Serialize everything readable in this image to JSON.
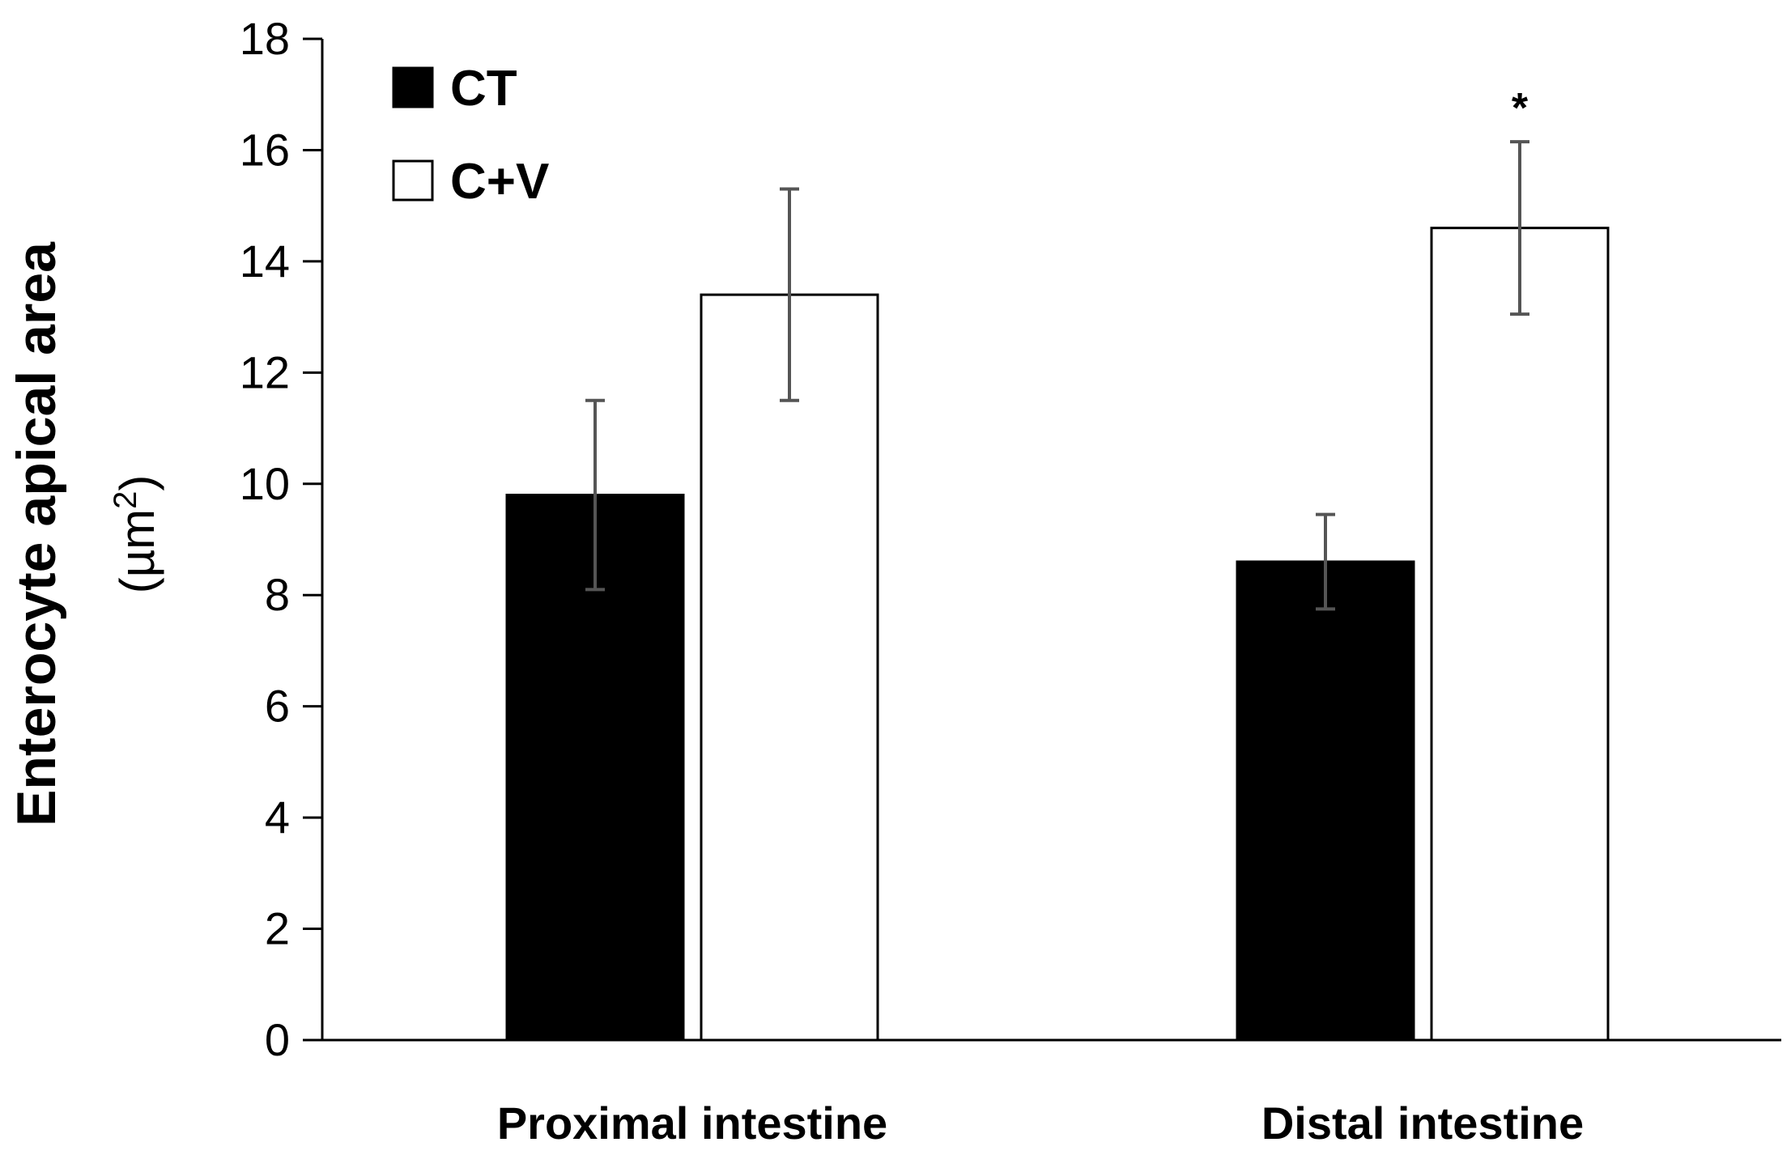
{
  "chart_data": {
    "type": "bar",
    "categories": [
      "Proximal intestine",
      "Distal intestine"
    ],
    "series": [
      {
        "name": "CT",
        "color": "#000000",
        "values": [
          9.8,
          8.6
        ],
        "errors": [
          1.7,
          0.85
        ]
      },
      {
        "name": "C+V",
        "color": "#ffffff",
        "values": [
          13.4,
          14.6
        ],
        "errors": [
          1.9,
          1.55
        ]
      }
    ],
    "ylabel": "Enterocyte apical area",
    "ylabel_unit": "(µm",
    "ylabel_unit_sup": "2",
    "ylabel_unit_close": ")",
    "ylim": [
      0,
      18
    ],
    "yticks": [
      "0",
      "2",
      "4",
      "6",
      "8",
      "10",
      "12",
      "14",
      "16",
      "18"
    ],
    "annotations": [
      {
        "text": "*",
        "category": 1,
        "series": 1
      }
    ],
    "legend_position": "top-left",
    "grid": false
  }
}
